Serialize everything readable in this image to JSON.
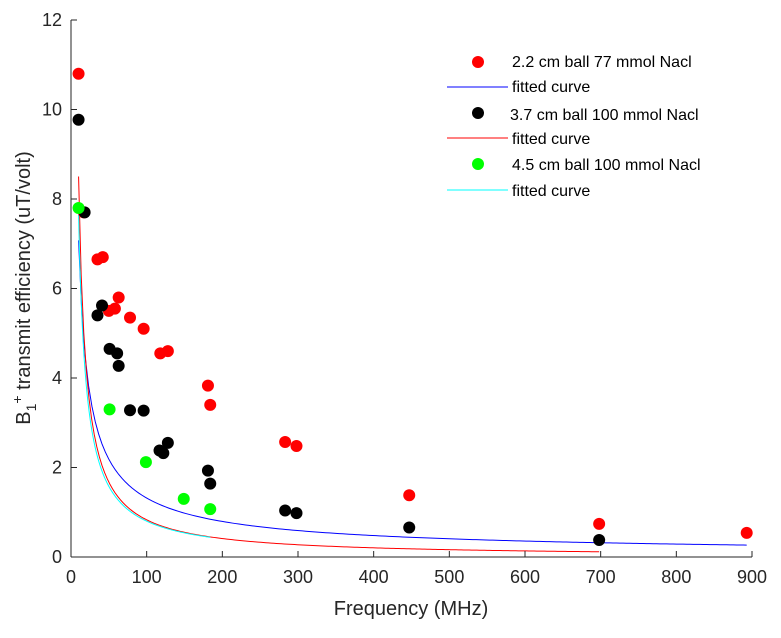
{
  "chart_data": {
    "type": "scatter",
    "title": "",
    "xlabel": "Frequency (MHz)",
    "ylabel": "B1+ transmit efficiency (uT/volt)",
    "ylabel_parts": {
      "main": "B",
      "sub": "1",
      "sup": "+",
      "rest": " transmit efficiency (uT/volt)"
    },
    "xlim": [
      0,
      900
    ],
    "ylim": [
      0,
      12
    ],
    "xticks": [
      0,
      100,
      200,
      300,
      400,
      500,
      600,
      700,
      800,
      900
    ],
    "yticks": [
      0,
      2,
      4,
      6,
      8,
      10,
      12
    ],
    "grid": false,
    "legend_position": "top-right",
    "series": [
      {
        "name": "2.2 cm ball 77 mmol Nacl",
        "kind": "points",
        "color": "#ff0000",
        "points": [
          [
            10,
            10.8
          ],
          [
            17,
            7.7
          ],
          [
            35,
            6.65
          ],
          [
            42,
            6.7
          ],
          [
            50,
            5.5
          ],
          [
            58,
            5.55
          ],
          [
            63,
            5.8
          ],
          [
            78,
            5.35
          ],
          [
            96,
            5.1
          ],
          [
            118,
            4.55
          ],
          [
            128,
            4.6
          ],
          [
            181,
            3.83
          ],
          [
            184,
            3.4
          ],
          [
            283,
            2.57
          ],
          [
            298,
            2.48
          ],
          [
            447,
            1.38
          ],
          [
            698,
            0.74
          ],
          [
            893,
            0.54
          ]
        ]
      },
      {
        "name": "fitted curve",
        "kind": "curve",
        "color": "#0000ff",
        "fit": {
          "a": 38.0,
          "b": 0.73,
          "x_start": 10,
          "x_end": 893
        }
      },
      {
        "name": "3.7 cm ball 100 mmol Nacl",
        "kind": "points",
        "color": "#000000",
        "points": [
          [
            10,
            9.77
          ],
          [
            18,
            7.7
          ],
          [
            35,
            5.4
          ],
          [
            41,
            5.62
          ],
          [
            51,
            4.65
          ],
          [
            61,
            4.55
          ],
          [
            63,
            4.27
          ],
          [
            78,
            3.28
          ],
          [
            96,
            3.27
          ],
          [
            117,
            2.38
          ],
          [
            122,
            2.32
          ],
          [
            128,
            2.55
          ],
          [
            181,
            1.93
          ],
          [
            184,
            1.64
          ],
          [
            283,
            1.04
          ],
          [
            298,
            0.98
          ],
          [
            447,
            0.66
          ],
          [
            698,
            0.38
          ]
        ]
      },
      {
        "name": "fitted curve",
        "kind": "curve",
        "color": "#ff0000",
        "fit": {
          "a": 87.0,
          "b": 1.01,
          "x_start": 10,
          "x_end": 698
        }
      },
      {
        "name": "4.5 cm ball 100 mmol Nacl",
        "kind": "points",
        "color": "#00ff00",
        "points": [
          [
            10,
            7.8
          ],
          [
            51,
            3.3
          ],
          [
            99,
            2.12
          ],
          [
            149,
            1.3
          ],
          [
            184,
            1.07
          ]
        ]
      },
      {
        "name": "fitted curve",
        "kind": "curve",
        "color": "#00ffff",
        "fit": {
          "a": 73.0,
          "b": 0.98,
          "x_start": 10,
          "x_end": 184
        }
      }
    ]
  }
}
